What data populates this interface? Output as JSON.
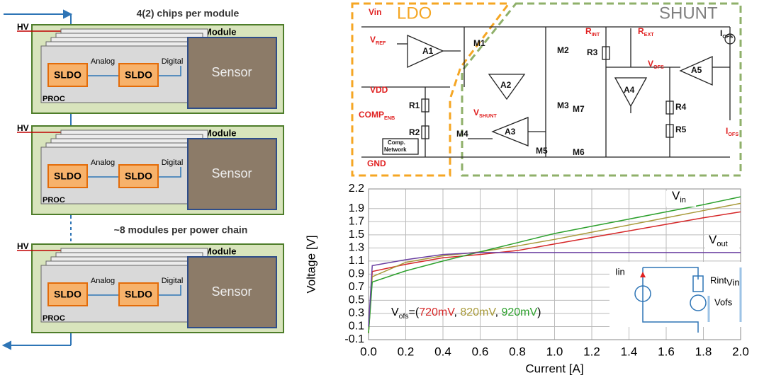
{
  "left_diagram": {
    "title": "4(2) chips per module",
    "caption": "~8 modules per power chain",
    "modules": [
      {
        "hv": "HV",
        "module": "Module",
        "sensor": "Sensor",
        "sldo": [
          "SLDO",
          "SLDO"
        ],
        "analog": "Analog",
        "digital": "Digital",
        "proc": "PROC"
      },
      {
        "hv": "HV",
        "module": "Module",
        "sensor": "Sensor",
        "sldo": [
          "SLDO",
          "SLDO"
        ],
        "analog": "Analog",
        "digital": "Digital",
        "proc": "PROC"
      },
      {
        "hv": "HV",
        "module": "Module",
        "sensor": "Sensor",
        "sldo": [
          "SLDO",
          "SLDO"
        ],
        "analog": "Analog",
        "digital": "Digital",
        "proc": "PROC"
      }
    ]
  },
  "schematic": {
    "ldo": "LDO",
    "shunt": "SHUNT",
    "labels": [
      {
        "text": "Vin"
      },
      {
        "text": "V",
        "sub": "REF"
      },
      {
        "text": "VDD"
      },
      {
        "text": "COMP",
        "sub": "ENB"
      },
      {
        "text": "GND"
      },
      {
        "text": "A1"
      },
      {
        "text": "M1"
      },
      {
        "text": "M2"
      },
      {
        "text": "A2"
      },
      {
        "text": "M3"
      },
      {
        "text": "R1"
      },
      {
        "text": "R2"
      },
      {
        "text": "V",
        "sub": "SHUNT"
      },
      {
        "text": "A3"
      },
      {
        "text": "M4"
      },
      {
        "text": "M5"
      },
      {
        "text": "Comp."
      },
      {
        "text": "Network"
      },
      {
        "text": "R",
        "sub": "INT"
      },
      {
        "text": "R",
        "sub": "EXT"
      },
      {
        "text": "R3"
      },
      {
        "text": "V",
        "sub": "OFS"
      },
      {
        "text": "A4"
      },
      {
        "text": "M7"
      },
      {
        "text": "M6"
      },
      {
        "text": "R4"
      },
      {
        "text": "R5"
      },
      {
        "text": "A5"
      },
      {
        "text": "I",
        "sub": "OFS"
      },
      {
        "text": "I",
        "sub": "OFS"
      }
    ]
  },
  "chart_data": {
    "type": "line",
    "x_label": "Current [A]",
    "y_label": "Voltage [V]",
    "x": [
      0,
      0.02,
      0.2,
      0.4,
      0.6,
      0.8,
      1.0,
      1.2,
      1.4,
      1.6,
      1.8,
      2.0
    ],
    "xlim": [
      0,
      2
    ],
    "xticks": [
      {
        "value": 0,
        "label": "0.0"
      },
      0.2,
      0.4,
      0.6,
      0.8,
      {
        "value": 1,
        "label": "1.0"
      },
      1.2,
      1.4,
      1.6,
      1.8,
      {
        "value": 2,
        "label": "2.0"
      }
    ],
    "ylim": [
      -0.1,
      2.2
    ],
    "yticks": [
      -0.1,
      0.1,
      0.3,
      0.5,
      0.7,
      0.9,
      1.1,
      1.3,
      1.5,
      1.7,
      1.9,
      2.2
    ],
    "grid": true,
    "series": [
      {
        "name": "720mV",
        "color": "#d62728",
        "values": [
          0,
          0.94,
          1.05,
          1.15,
          1.2,
          1.26,
          1.36,
          1.46,
          1.56,
          1.66,
          1.76,
          1.85
        ]
      },
      {
        "name": "820mV",
        "color": "#a89a3a",
        "values": [
          0,
          0.86,
          1.08,
          1.18,
          1.24,
          1.33,
          1.43,
          1.54,
          1.65,
          1.76,
          1.87,
          1.98
        ]
      },
      {
        "name": "920mV",
        "color": "#2ca02c",
        "values": [
          0,
          0.78,
          0.95,
          1.1,
          1.24,
          1.38,
          1.52,
          1.63,
          1.74,
          1.85,
          1.96,
          2.08
        ]
      },
      {
        "color": "#6a3fa0",
        "values": [
          0.1,
          1.03,
          1.12,
          1.2,
          1.23,
          1.23,
          1.23,
          1.23,
          1.23,
          1.23,
          1.23,
          1.23
        ]
      }
    ],
    "annotations": {
      "vin": {
        "base": "V",
        "sub": "in"
      },
      "vout": {
        "base": "V",
        "sub": "out"
      },
      "vofs": {
        "base": "V",
        "sub": "ofs",
        "open": "=(",
        "sep": ", ",
        "close": ")"
      },
      "inset": [
        "Iin",
        "Rint",
        "Vin",
        "Vofs"
      ]
    }
  }
}
